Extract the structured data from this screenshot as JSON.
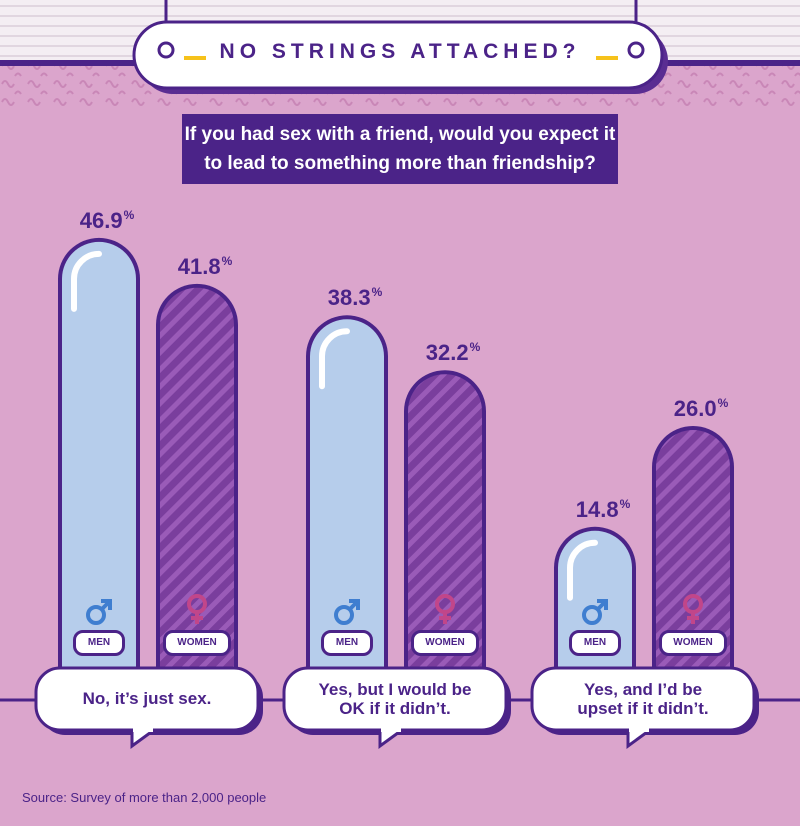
{
  "banner": {
    "title": "NO STRINGS ATTACHED?"
  },
  "question": "If you had sex with a friend, would you expect it to lead to something more than friendship?",
  "labels": {
    "men": "MEN",
    "women": "WOMEN",
    "percent_sign": "%"
  },
  "icons": {
    "men": "male-symbol-icon",
    "women": "female-symbol-icon"
  },
  "colors": {
    "background": "#DBA5CC",
    "purple": "#4B2388",
    "men_fill": "#B6CDEB",
    "women_fill": "#7A3E9D",
    "men_icon": "#3F7ED0",
    "women_icon": "#C1468A"
  },
  "chart_data": {
    "type": "bar",
    "categories": [
      "No, it’s just sex.",
      "Yes, but I would be OK if it didn’t.",
      "Yes, and I’d be upset if it didn’t."
    ],
    "category_lines": [
      [
        "No, it’s just sex."
      ],
      [
        "Yes, but I would be",
        "OK if it didn’t."
      ],
      [
        "Yes, and I’d be",
        "upset if it didn’t."
      ]
    ],
    "series": [
      {
        "name": "MEN",
        "values": [
          46.9,
          38.3,
          14.8
        ]
      },
      {
        "name": "WOMEN",
        "values": [
          41.8,
          32.2,
          26.0
        ]
      }
    ],
    "value_labels": {
      "MEN": [
        "46.9",
        "38.3",
        "14.8"
      ],
      "WOMEN": [
        "41.8",
        "32.2",
        "26.0"
      ]
    },
    "unit": "%",
    "title": "If you had sex with a friend, would you expect it to lead to something more than friendship?",
    "xlabel": "",
    "ylabel": "",
    "ylim": [
      0,
      50
    ],
    "grid": false,
    "legend": "none"
  },
  "source": "Source: Survey of more than 2,000 people"
}
